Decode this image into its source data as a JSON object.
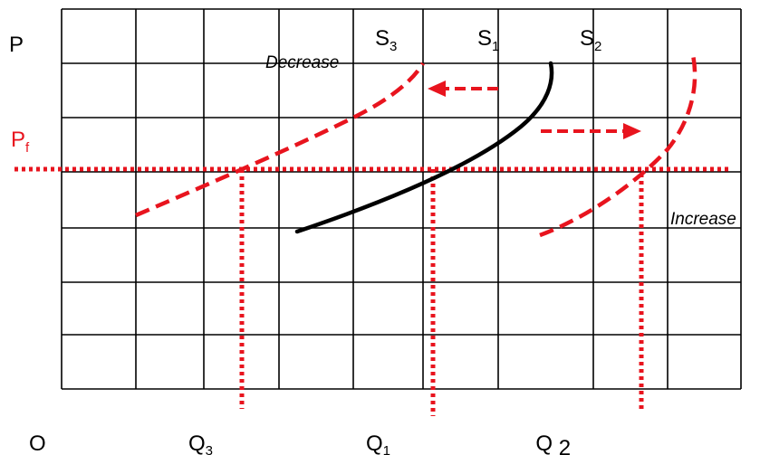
{
  "diagram": {
    "axis_price": "P",
    "axis_origin": "O",
    "price_floor": {
      "label": "P",
      "subscript": "f"
    },
    "curves": {
      "s3": {
        "label": "S",
        "subscript": "3"
      },
      "s1": {
        "label": "S",
        "subscript": "1"
      },
      "s2": {
        "label": "S",
        "subscript": "2"
      }
    },
    "quantities": {
      "q3": {
        "label": "Q",
        "subscript": "3"
      },
      "q1": {
        "label": "Q",
        "subscript": "1"
      },
      "q2": {
        "label": "Q ",
        "subscript": "2"
      }
    },
    "annotations": {
      "decrease": "Decrease",
      "increase": "Increase"
    },
    "colors": {
      "grid": "#000000",
      "shift": "#e8141e",
      "base_curve": "#000000"
    }
  }
}
